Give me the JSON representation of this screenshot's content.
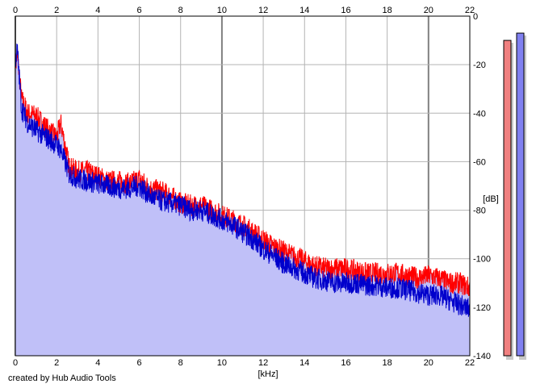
{
  "chart_data": {
    "type": "area",
    "xlabel": "[kHz]",
    "ylabel": "[dB]",
    "xlim": [
      0,
      22
    ],
    "ylim": [
      -140,
      0
    ],
    "x_ticks": [
      0,
      2,
      4,
      6,
      8,
      10,
      12,
      14,
      16,
      18,
      20,
      22
    ],
    "y_ticks": [
      0,
      -20,
      -40,
      -60,
      -80,
      -100,
      -120,
      -140
    ],
    "grid": true,
    "series": [
      {
        "color": "#ff0000",
        "x": [
          0,
          0.1,
          0.3,
          0.6,
          1.0,
          1.5,
          2.0,
          2.2,
          2.6,
          3.0,
          3.5,
          4.0,
          4.5,
          5.0,
          5.5,
          6.0,
          6.5,
          7.0,
          7.5,
          8.0,
          8.5,
          9.0,
          9.5,
          10.0,
          10.5,
          11.0,
          11.5,
          12.0,
          12.5,
          13.0,
          13.5,
          14.0,
          14.5,
          15.0,
          15.5,
          16.0,
          16.5,
          17.0,
          17.5,
          18.0,
          18.5,
          19.0,
          19.5,
          20.0,
          20.5,
          21.0,
          21.5,
          22.0
        ],
        "y": [
          -20,
          -16,
          -34,
          -40,
          -41,
          -46,
          -50,
          -44,
          -62,
          -64,
          -64,
          -66,
          -68,
          -68,
          -69,
          -67,
          -71,
          -72,
          -74,
          -77,
          -78,
          -78,
          -80,
          -82,
          -84,
          -86,
          -89,
          -92,
          -95,
          -97,
          -99,
          -101,
          -103,
          -104,
          -104,
          -104,
          -105,
          -106,
          -106,
          -106,
          -106,
          -107,
          -108,
          -107,
          -108,
          -110,
          -110,
          -112
        ]
      },
      {
        "color": "#0000cc",
        "x": [
          0,
          0.1,
          0.3,
          0.6,
          1.0,
          1.5,
          2.0,
          2.2,
          2.6,
          3.0,
          3.5,
          4.0,
          4.5,
          5.0,
          5.5,
          6.0,
          6.5,
          7.0,
          7.5,
          8.0,
          8.5,
          9.0,
          9.5,
          10.0,
          10.5,
          11.0,
          11.5,
          12.0,
          12.5,
          13.0,
          13.5,
          14.0,
          14.5,
          15.0,
          15.5,
          16.0,
          16.5,
          17.0,
          17.5,
          18.0,
          18.5,
          19.0,
          19.5,
          20.0,
          20.5,
          21.0,
          21.5,
          22.0
        ],
        "y": [
          -18,
          -14,
          -38,
          -44,
          -47,
          -50,
          -53,
          -55,
          -65,
          -67,
          -68,
          -69,
          -70,
          -71,
          -71,
          -70,
          -74,
          -76,
          -77,
          -78,
          -80,
          -80,
          -82,
          -84,
          -86,
          -89,
          -92,
          -96,
          -99,
          -102,
          -104,
          -106,
          -108,
          -109,
          -110,
          -110,
          -110,
          -111,
          -111,
          -112,
          -112,
          -113,
          -114,
          -115,
          -115,
          -117,
          -119,
          -121
        ]
      }
    ],
    "meters": [
      {
        "color": "#f08080",
        "level_db": -10
      },
      {
        "color": "#8080f0",
        "level_db": -7
      }
    ]
  },
  "credit": "created by Hub Audio Tools"
}
